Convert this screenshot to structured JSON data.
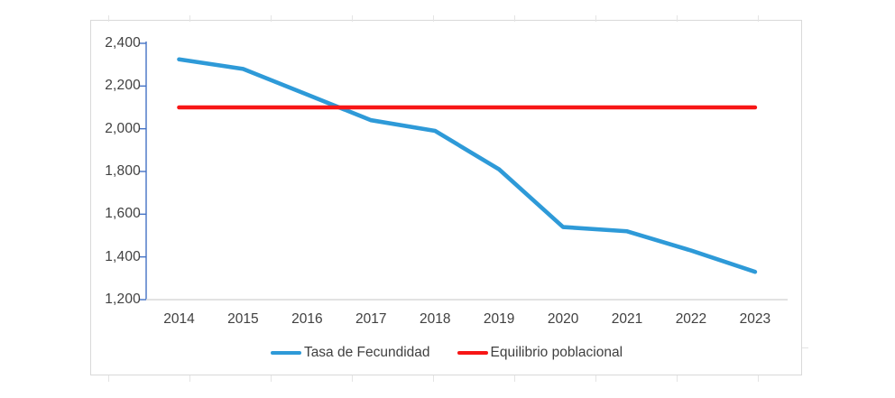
{
  "chart_data": {
    "type": "line",
    "categories": [
      "2014",
      "2015",
      "2016",
      "2017",
      "2018",
      "2019",
      "2020",
      "2021",
      "2022",
      "2023"
    ],
    "series": [
      {
        "name": "Tasa de Fecundidad",
        "color": "#2E9AD8",
        "values": [
          2325,
          2280,
          2160,
          2040,
          1990,
          1810,
          1540,
          1520,
          1430,
          1330
        ]
      },
      {
        "name": "Equilibrio poblacional",
        "color": "#F71616",
        "values": [
          2100,
          2100,
          2100,
          2100,
          2100,
          2100,
          2100,
          2100,
          2100,
          2100
        ]
      }
    ],
    "ylim": [
      1200,
      2400
    ],
    "ytick_step": 200,
    "yticks": [
      {
        "value": 2400,
        "label": "2,400"
      },
      {
        "value": 2200,
        "label": "2,200"
      },
      {
        "value": 2000,
        "label": "2,000"
      },
      {
        "value": 1800,
        "label": "1,800"
      },
      {
        "value": 1600,
        "label": "1,600"
      },
      {
        "value": 1400,
        "label": "1,400"
      },
      {
        "value": 1200,
        "label": "1,200"
      }
    ],
    "grid": false,
    "legend_position": "bottom"
  },
  "axes": {
    "y_axis_color": "#4472C4",
    "x_axis_color": "#D9D9D9",
    "label_color": "#404040"
  },
  "legend": {
    "items": [
      {
        "label": "Tasa de Fecundidad",
        "color": "#2E9AD8"
      },
      {
        "label": "Equilibrio poblacional",
        "color": "#F71616"
      }
    ]
  }
}
